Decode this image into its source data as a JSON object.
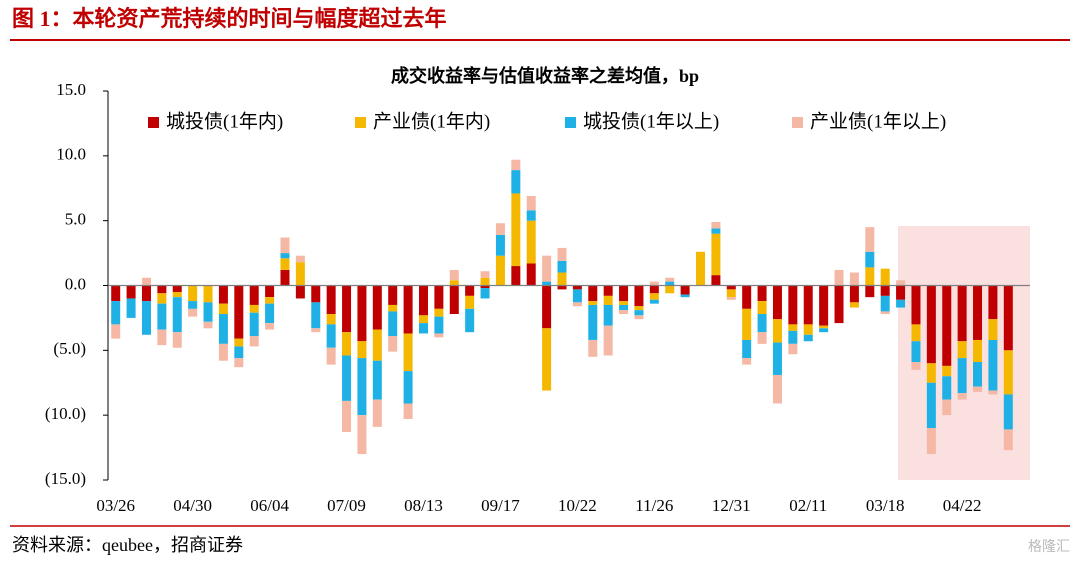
{
  "header": {
    "title": "图 1：本轮资产荒持续的时间与幅度超过去年"
  },
  "footer": {
    "source": "资料来源：qeubee，招商证券",
    "watermark": "格隆汇"
  },
  "chart_data": {
    "type": "bar",
    "stacked": true,
    "title": "成交收益率与估值收益率之差均值，bp",
    "categories": [
      "03/26",
      null,
      null,
      null,
      null,
      "04/30",
      null,
      null,
      null,
      null,
      "06/04",
      null,
      null,
      null,
      null,
      "07/09",
      null,
      null,
      null,
      null,
      "08/13",
      null,
      null,
      null,
      null,
      "09/17",
      null,
      null,
      null,
      null,
      "10/22",
      null,
      null,
      null,
      null,
      "11/26",
      null,
      null,
      null,
      null,
      "12/31",
      null,
      null,
      null,
      null,
      "02/11",
      null,
      null,
      null,
      null,
      "03/18",
      null,
      null,
      null,
      null,
      "04/22",
      null,
      null,
      null
    ],
    "series": [
      {
        "name": "城投债(1年内)",
        "color": "#c00000",
        "values": [
          -1.2,
          -1.0,
          -1.2,
          -0.6,
          -0.5,
          0,
          0,
          -1.4,
          -4.1,
          -1.5,
          -0.9,
          1.2,
          -1.0,
          -1.3,
          -2.2,
          -3.6,
          -4.3,
          -3.4,
          -1.5,
          -3.7,
          -2.3,
          -1.8,
          -2.2,
          -0.8,
          -0.2,
          0,
          1.5,
          1.7,
          -3.3,
          -0.3,
          -0.3,
          -1.2,
          -0.8,
          -1.2,
          -1.6,
          -0.6,
          0,
          -0.7,
          0,
          0.8,
          -0.3,
          -1.8,
          -1.2,
          -2.6,
          -3.0,
          -3.0,
          -3.1,
          -2.9,
          -1.3,
          -0.9,
          -0.8,
          -1.1,
          -3.0,
          -6.0,
          -6.2,
          -4.3,
          -4.2,
          -2.6,
          -5.0
        ]
      },
      {
        "name": "产业债(1年内)",
        "color": "#f5b800",
        "values": [
          0,
          0,
          0,
          -0.8,
          -0.4,
          -1.2,
          -1.3,
          -0.8,
          -0.6,
          -0.6,
          -0.5,
          0.9,
          1.8,
          0,
          -0.8,
          -1.8,
          -1.3,
          -2.4,
          -0.5,
          -2.9,
          -0.6,
          -0.6,
          0.4,
          -1.0,
          0.6,
          2.3,
          5.6,
          3.3,
          -4.8,
          1.0,
          0,
          -0.3,
          -0.7,
          -0.3,
          -0.3,
          -0.5,
          -0.6,
          0,
          2.6,
          3.2,
          -0.6,
          -2.4,
          -1.0,
          -1.8,
          -0.5,
          -0.8,
          -0.2,
          0,
          -0.4,
          1.4,
          1.3,
          0,
          -1.3,
          -1.5,
          -0.8,
          -1.3,
          -1.7,
          -1.6,
          -3.4
        ]
      },
      {
        "name": "城投债(1年以上)",
        "color": "#1fb1e6",
        "values": [
          -1.8,
          -1.5,
          -2.6,
          -2.0,
          -2.7,
          -0.6,
          -1.5,
          -2.3,
          -0.9,
          -1.8,
          -1.5,
          0.4,
          0,
          -2.0,
          -1.8,
          -3.5,
          -4.4,
          -3.0,
          -1.9,
          -2.5,
          -0.8,
          -1.3,
          0,
          -1.8,
          -0.8,
          1.6,
          1.8,
          0.8,
          0.3,
          0.9,
          -1.0,
          -2.7,
          -1.6,
          -0.4,
          -0.4,
          -0.3,
          0.3,
          -0.2,
          0,
          0.4,
          0,
          -1.4,
          -1.4,
          -2.5,
          -1.0,
          -0.5,
          -0.3,
          0,
          0,
          1.2,
          -1.2,
          -0.6,
          -1.6,
          -3.5,
          -1.8,
          -2.7,
          -1.9,
          -3.9,
          -2.7
        ]
      },
      {
        "name": "产业债(1年以上)",
        "color": "#f4b8a4",
        "values": [
          -1.1,
          0,
          0.6,
          -1.2,
          -1.2,
          -0.6,
          -0.5,
          -1.3,
          -0.7,
          -0.8,
          -0.5,
          1.2,
          0.5,
          -0.3,
          -1.3,
          -2.4,
          -3.0,
          -2.1,
          -1.2,
          -1.2,
          0,
          -0.3,
          0.8,
          0,
          0.5,
          0.9,
          0.8,
          1.1,
          2.0,
          1.0,
          -0.3,
          -1.3,
          -2.3,
          -0.3,
          -0.3,
          0.3,
          0.3,
          0,
          0,
          0.5,
          -0.2,
          -0.5,
          -0.9,
          -2.2,
          -0.8,
          0,
          0,
          1.2,
          1.0,
          1.9,
          -0.2,
          0.4,
          -0.6,
          -2.0,
          -1.2,
          -0.5,
          -0.4,
          -0.3,
          -1.6
        ]
      }
    ],
    "ylim": [
      -15,
      15
    ],
    "yticks": [
      {
        "value": -15,
        "label": "(15.0)"
      },
      {
        "value": -10,
        "label": "(10.0)"
      },
      {
        "value": -5,
        "label": "(5.0)"
      },
      {
        "value": 0,
        "label": "0.0"
      },
      {
        "value": 5,
        "label": "5.0"
      },
      {
        "value": 10,
        "label": "10.0"
      },
      {
        "value": 15,
        "label": "15.0"
      }
    ],
    "legend": "top",
    "grid": false
  }
}
